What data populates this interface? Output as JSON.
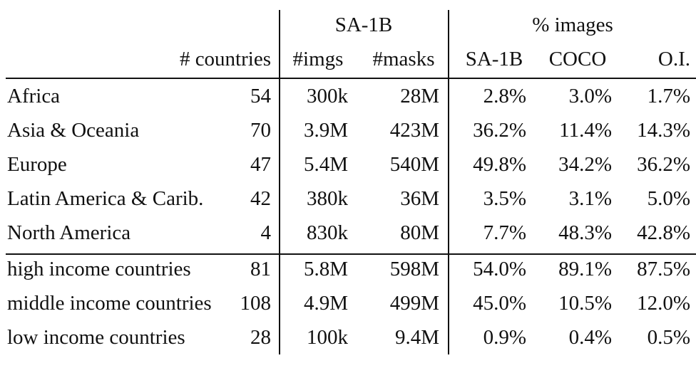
{
  "header": {
    "group_sa1b": "SA-1B",
    "group_images": "% images",
    "col_countries": "# countries",
    "col_imgs": "#imgs",
    "col_masks": "#masks",
    "col_sa1b": "SA-1B",
    "col_coco": "COCO",
    "col_oi": "O.I."
  },
  "rows": [
    {
      "region": "Africa",
      "countries": "54",
      "imgs": "300k",
      "masks": "28M",
      "sa1b": "2.8%",
      "coco": "3.0%",
      "oi": "1.7%"
    },
    {
      "region": "Asia & Oceania",
      "countries": "70",
      "imgs": "3.9M",
      "masks": "423M",
      "sa1b": "36.2%",
      "coco": "11.4%",
      "oi": "14.3%"
    },
    {
      "region": "Europe",
      "countries": "47",
      "imgs": "5.4M",
      "masks": "540M",
      "sa1b": "49.8%",
      "coco": "34.2%",
      "oi": "36.2%"
    },
    {
      "region": "Latin America & Carib.",
      "countries": "42",
      "imgs": "380k",
      "masks": "36M",
      "sa1b": "3.5%",
      "coco": "3.1%",
      "oi": "5.0%"
    },
    {
      "region": "North America",
      "countries": "4",
      "imgs": "830k",
      "masks": "80M",
      "sa1b": "7.7%",
      "coco": "48.3%",
      "oi": "42.8%"
    },
    {
      "region": "high income countries",
      "countries": "81",
      "imgs": "5.8M",
      "masks": "598M",
      "sa1b": "54.0%",
      "coco": "89.1%",
      "oi": "87.5%"
    },
    {
      "region": "middle income countries",
      "countries": "108",
      "imgs": "4.9M",
      "masks": "499M",
      "sa1b": "45.0%",
      "coco": "10.5%",
      "oi": "12.0%"
    },
    {
      "region": "low income countries",
      "countries": "28",
      "imgs": "100k",
      "masks": "9.4M",
      "sa1b": "0.9%",
      "coco": "0.4%",
      "oi": "0.5%"
    }
  ]
}
